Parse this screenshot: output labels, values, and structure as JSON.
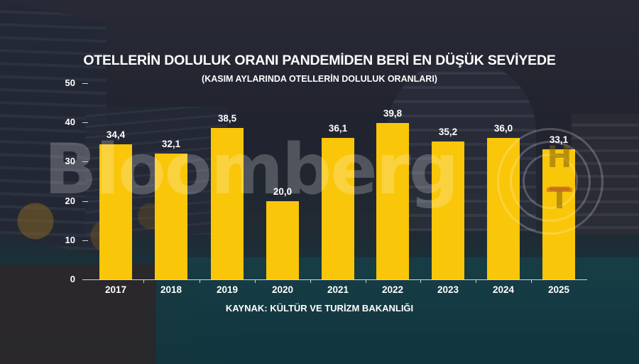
{
  "header": {
    "title": "OTELLERİN DOLULUK ORANI PANDEMİDEN BERİ EN DÜŞÜK SEVİYEDE",
    "subtitle": "(KASIM AYLARINDA OTELLERİN DOLULUK ORANLARI)"
  },
  "footer": {
    "source": "KAYNAK: KÜLTÜR VE TURİZM BAKANLIĞI"
  },
  "branding": {
    "watermark": "Bloomberg",
    "logo_top": "H",
    "logo_bottom": "T"
  },
  "colors": {
    "bar": "#f9c60a",
    "text": "#ffffff"
  },
  "y_ticks": [
    "0",
    "10",
    "20",
    "30",
    "40",
    "50"
  ],
  "bar_labels": [
    "34,4",
    "32,1",
    "38,5",
    "20,0",
    "36,1",
    "39,8",
    "35,2",
    "36,0",
    "33,1"
  ],
  "chart_data": {
    "type": "bar",
    "title": "OTELLERİN DOLULUK ORANI PANDEMİDEN BERİ EN DÜŞÜK SEVİYEDE",
    "subtitle": "(KASIM AYLARINDA OTELLERİN DOLULUK ORANLARI)",
    "categories": [
      "2017",
      "2018",
      "2019",
      "2020",
      "2021",
      "2022",
      "2023",
      "2024",
      "2025"
    ],
    "values": [
      34.4,
      32.1,
      38.5,
      20.0,
      36.1,
      39.8,
      35.2,
      36.0,
      33.1
    ],
    "xlabel": "",
    "ylabel": "",
    "ylim": [
      0,
      50
    ],
    "yticks": [
      0,
      10,
      20,
      30,
      40,
      50
    ],
    "grid": false,
    "legend": null,
    "data_labels": true,
    "source": "KAYNAK: KÜLTÜR VE TURİZM BAKANLIĞI"
  }
}
